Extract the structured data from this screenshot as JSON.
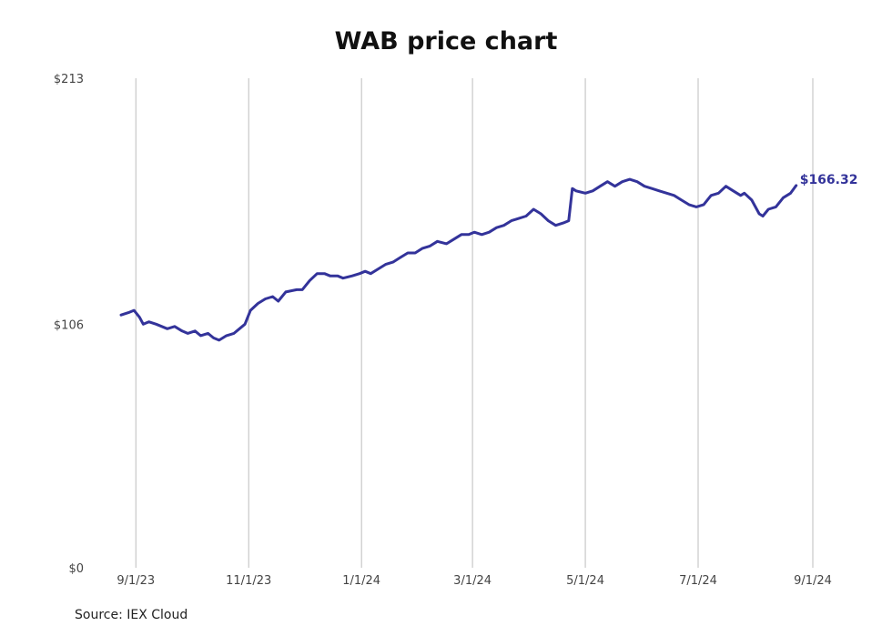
{
  "chart_data": {
    "type": "line",
    "title": "WAB price chart",
    "xlabel": "",
    "ylabel": "",
    "ylim": [
      0,
      213
    ],
    "y_ticks": [
      "$0",
      "$106",
      "$213"
    ],
    "x_ticks": [
      "9/1/23",
      "11/1/23",
      "1/1/24",
      "3/1/24",
      "5/1/24",
      "7/1/24",
      "9/1/24"
    ],
    "x_range": [
      "2023-08-24",
      "2024-09-01"
    ],
    "grid": "vertical",
    "legend": "none",
    "end_label": "$166.32",
    "series": [
      {
        "color": "#33339a",
        "x": [
          "2023-08-24",
          "2023-08-28",
          "2023-08-31",
          "2023-09-03",
          "2023-09-05",
          "2023-09-08",
          "2023-09-12",
          "2023-09-15",
          "2023-09-18",
          "2023-09-22",
          "2023-09-26",
          "2023-09-29",
          "2023-10-03",
          "2023-10-06",
          "2023-10-10",
          "2023-10-13",
          "2023-10-16",
          "2023-10-20",
          "2023-10-24",
          "2023-10-27",
          "2023-10-30",
          "2023-11-02",
          "2023-11-06",
          "2023-11-10",
          "2023-11-14",
          "2023-11-17",
          "2023-11-21",
          "2023-11-27",
          "2023-11-30",
          "2023-12-04",
          "2023-12-08",
          "2023-12-12",
          "2023-12-15",
          "2023-12-19",
          "2023-12-22",
          "2023-12-27",
          "2023-12-31",
          "2024-01-03",
          "2024-01-06",
          "2024-01-10",
          "2024-01-14",
          "2024-01-18",
          "2024-01-22",
          "2024-01-26",
          "2024-01-30",
          "2024-02-03",
          "2024-02-07",
          "2024-02-11",
          "2024-02-16",
          "2024-02-20",
          "2024-02-24",
          "2024-02-28",
          "2024-03-02",
          "2024-03-06",
          "2024-03-10",
          "2024-03-14",
          "2024-03-18",
          "2024-03-22",
          "2024-03-26",
          "2024-03-30",
          "2024-04-03",
          "2024-04-07",
          "2024-04-11",
          "2024-04-15",
          "2024-04-19",
          "2024-04-22",
          "2024-04-24",
          "2024-04-26",
          "2024-05-01",
          "2024-05-05",
          "2024-05-09",
          "2024-05-13",
          "2024-05-17",
          "2024-05-21",
          "2024-05-25",
          "2024-05-29",
          "2024-06-02",
          "2024-06-06",
          "2024-06-10",
          "2024-06-14",
          "2024-06-18",
          "2024-06-22",
          "2024-06-26",
          "2024-06-30",
          "2024-07-04",
          "2024-07-08",
          "2024-07-12",
          "2024-07-16",
          "2024-07-20",
          "2024-07-24",
          "2024-07-26",
          "2024-07-30",
          "2024-08-03",
          "2024-08-05",
          "2024-08-08",
          "2024-08-12",
          "2024-08-16",
          "2024-08-20",
          "2024-08-23"
        ],
        "values": [
          110,
          111,
          112,
          109,
          106,
          107,
          106,
          105,
          104,
          105,
          103,
          102,
          103,
          101,
          102,
          100,
          99,
          101,
          102,
          104,
          106,
          112,
          115,
          117,
          118,
          116,
          120,
          121,
          121,
          125,
          128,
          128,
          127,
          127,
          126,
          127,
          128,
          129,
          128,
          130,
          132,
          133,
          135,
          137,
          137,
          139,
          140,
          142,
          141,
          143,
          145,
          145,
          146,
          145,
          146,
          148,
          149,
          151,
          152,
          153,
          156,
          154,
          151,
          149,
          150,
          151,
          165,
          164,
          163,
          164,
          166,
          168,
          166,
          168,
          169,
          168,
          166,
          165,
          164,
          163,
          162,
          160,
          158,
          157,
          158,
          162,
          163,
          166,
          164,
          162,
          163,
          160,
          154,
          153,
          156,
          157,
          161,
          163,
          166.32
        ]
      }
    ]
  },
  "source": "Source: IEX Cloud"
}
